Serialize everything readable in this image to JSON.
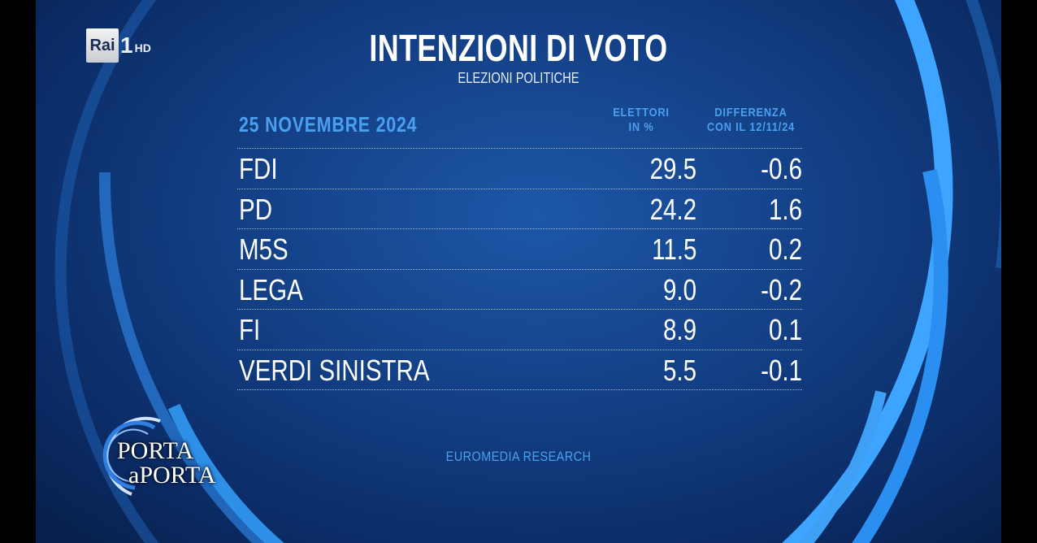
{
  "logo": {
    "brand": "Rai",
    "channel": "1",
    "quality": "HD"
  },
  "title": "INTENZIONI DI VOTO",
  "subtitle": "ELEZIONI POLITICHE",
  "date": "25 NOVEMBRE 2024",
  "columns": {
    "voters_line1": "ELETTORI",
    "voters_line2": "IN %",
    "diff_line1": "DIFFERENZA",
    "diff_line2": "CON IL 12/11/24"
  },
  "rows": [
    {
      "party": "FDI",
      "value": "29.5",
      "diff": "-0.6"
    },
    {
      "party": "PD",
      "value": "24.2",
      "diff": "1.6"
    },
    {
      "party": "M5S",
      "value": "11.5",
      "diff": "0.2"
    },
    {
      "party": "LEGA",
      "value": "9.0",
      "diff": "-0.2"
    },
    {
      "party": "FI",
      "value": "8.9",
      "diff": "0.1"
    },
    {
      "party": "VERDI SINISTRA",
      "value": "5.5",
      "diff": "-0.1"
    }
  ],
  "source": "EUROMEDIA RESEARCH",
  "show_logo": {
    "line1": "PORTA",
    "line2": "aPORTA"
  },
  "colors": {
    "accent": "#4aa0ee",
    "background": "#133f84",
    "text": "#ffffff"
  }
}
